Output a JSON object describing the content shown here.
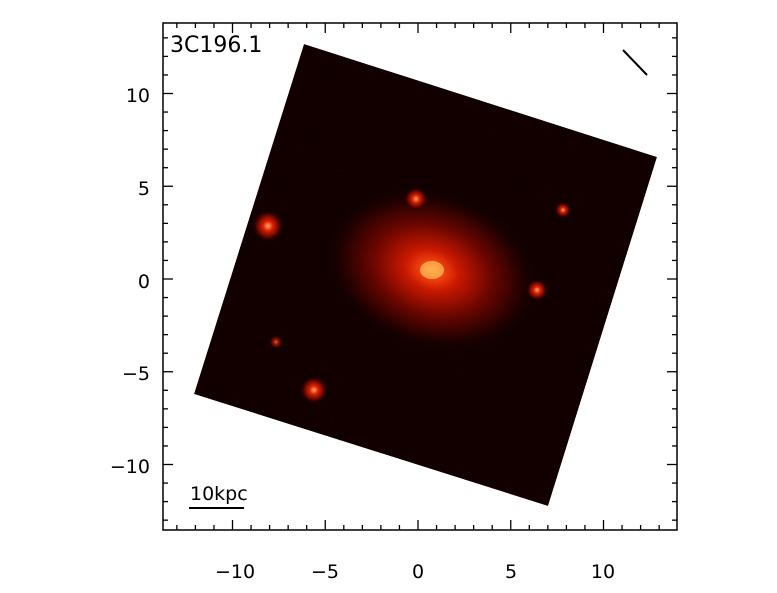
{
  "figure": {
    "object_name": "3C196.1",
    "scale_bar_label": "10kpc",
    "x_axis": {
      "ticks": [
        "−10",
        "−5",
        "0",
        "5",
        "10"
      ],
      "range": [
        -13.5,
        14
      ]
    },
    "y_axis": {
      "ticks": [
        "10",
        "5",
        "0",
        "−5",
        "−10"
      ],
      "range": [
        -13.5,
        13.5
      ]
    },
    "colors": {
      "frame": "#000000",
      "sky": "#050000",
      "galaxy_core": "#ffb050",
      "galaxy_glow": "#c81000"
    }
  }
}
